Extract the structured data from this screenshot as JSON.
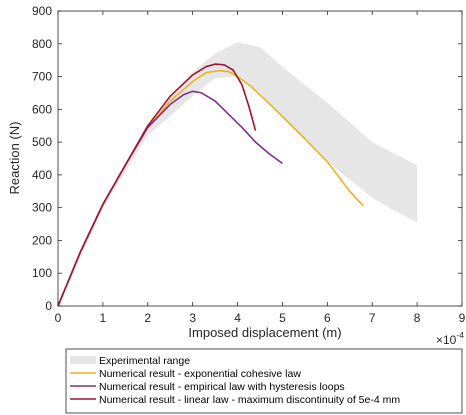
{
  "chart_data": {
    "type": "line",
    "xlabel": "Imposed displacement (m)",
    "ylabel": "Reaction (N)",
    "x_exponent_label": "×10",
    "x_exponent_power": "-4",
    "xlim": [
      0,
      9
    ],
    "ylim": [
      0,
      900
    ],
    "xticks": [
      "0",
      "1",
      "2",
      "3",
      "4",
      "5",
      "6",
      "7",
      "8",
      "9"
    ],
    "yticks": [
      "0",
      "100",
      "200",
      "300",
      "400",
      "500",
      "600",
      "700",
      "800",
      "900"
    ],
    "grid": false,
    "legend_position": "bottom",
    "experimental_band": {
      "name": "Experimental range",
      "color": "#e6e6e6",
      "upper": [
        [
          0,
          0
        ],
        [
          1,
          315
        ],
        [
          2,
          540
        ],
        [
          2.5,
          640
        ],
        [
          3,
          715
        ],
        [
          3.5,
          770
        ],
        [
          4,
          805
        ],
        [
          4.5,
          790
        ],
        [
          5,
          730
        ],
        [
          6,
          620
        ],
        [
          7,
          500
        ],
        [
          8,
          430
        ]
      ],
      "lower": [
        [
          8,
          255
        ],
        [
          7.5,
          290
        ],
        [
          7,
          330
        ],
        [
          6,
          440
        ],
        [
          5,
          575
        ],
        [
          4.5,
          650
        ],
        [
          4,
          700
        ],
        [
          3.5,
          695
        ],
        [
          3,
          640
        ],
        [
          2.5,
          580
        ],
        [
          2,
          520
        ],
        [
          1,
          300
        ],
        [
          0,
          0
        ]
      ]
    },
    "series": [
      {
        "name": "Numerical result - exponential cohesive law",
        "color": "#edb120",
        "x": [
          0,
          0.5,
          1,
          1.5,
          2,
          2.5,
          3,
          3.3,
          3.6,
          3.8,
          4.0,
          4.3,
          4.8,
          5.5,
          6.0,
          6.5,
          6.8
        ],
        "y": [
          0,
          165,
          310,
          430,
          545,
          625,
          685,
          712,
          718,
          715,
          700,
          670,
          605,
          510,
          440,
          350,
          305
        ]
      },
      {
        "name": "Numerical result - empirical law with hysteresis loops",
        "color": "#7e2f8e",
        "x": [
          0,
          0.5,
          1,
          1.5,
          2,
          2.5,
          2.8,
          3.0,
          3.2,
          3.5,
          3.8,
          4.1,
          4.4,
          4.7,
          5.0
        ],
        "y": [
          0,
          165,
          310,
          430,
          545,
          615,
          645,
          655,
          650,
          625,
          585,
          545,
          500,
          465,
          435
        ]
      },
      {
        "name": "Numerical result - linear law - maximum discontinuity of 5e-4 mm",
        "color": "#a2142f",
        "x": [
          0,
          0.5,
          1,
          1.5,
          2,
          2.5,
          3,
          3.3,
          3.5,
          3.7,
          3.9,
          4.1,
          4.25,
          4.35,
          4.4
        ],
        "y": [
          0,
          165,
          310,
          430,
          550,
          640,
          705,
          730,
          738,
          736,
          720,
          675,
          610,
          560,
          535
        ]
      }
    ]
  }
}
